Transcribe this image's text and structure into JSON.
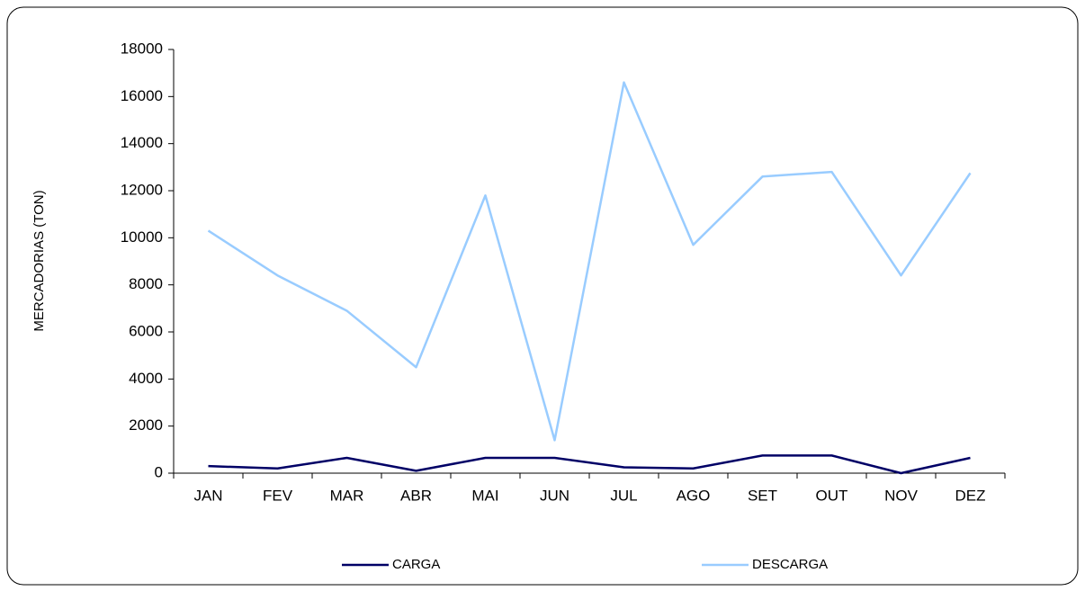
{
  "chart_data": {
    "type": "line",
    "y_label": "MERCADORIAS  (TON)",
    "categories": [
      "JAN",
      "FEV",
      "MAR",
      "ABR",
      "MAI",
      "JUN",
      "JUL",
      "AGO",
      "SET",
      "OUT",
      "NOV",
      "DEZ"
    ],
    "series": [
      {
        "name": "CARGA",
        "color": "#000066",
        "values": [
          300,
          200,
          650,
          100,
          650,
          650,
          250,
          200,
          750,
          750,
          0,
          650
        ]
      },
      {
        "name": "DESCARGA",
        "color": "#99ccff",
        "values": [
          10300,
          8400,
          6900,
          4500,
          11800,
          1400,
          16600,
          9700,
          12600,
          12800,
          8400,
          12750
        ]
      }
    ],
    "ylim": [
      0,
      18000
    ],
    "yticks": [
      0,
      2000,
      4000,
      6000,
      8000,
      10000,
      12000,
      14000,
      16000,
      18000
    ],
    "grid": false,
    "legend": "bottom"
  }
}
